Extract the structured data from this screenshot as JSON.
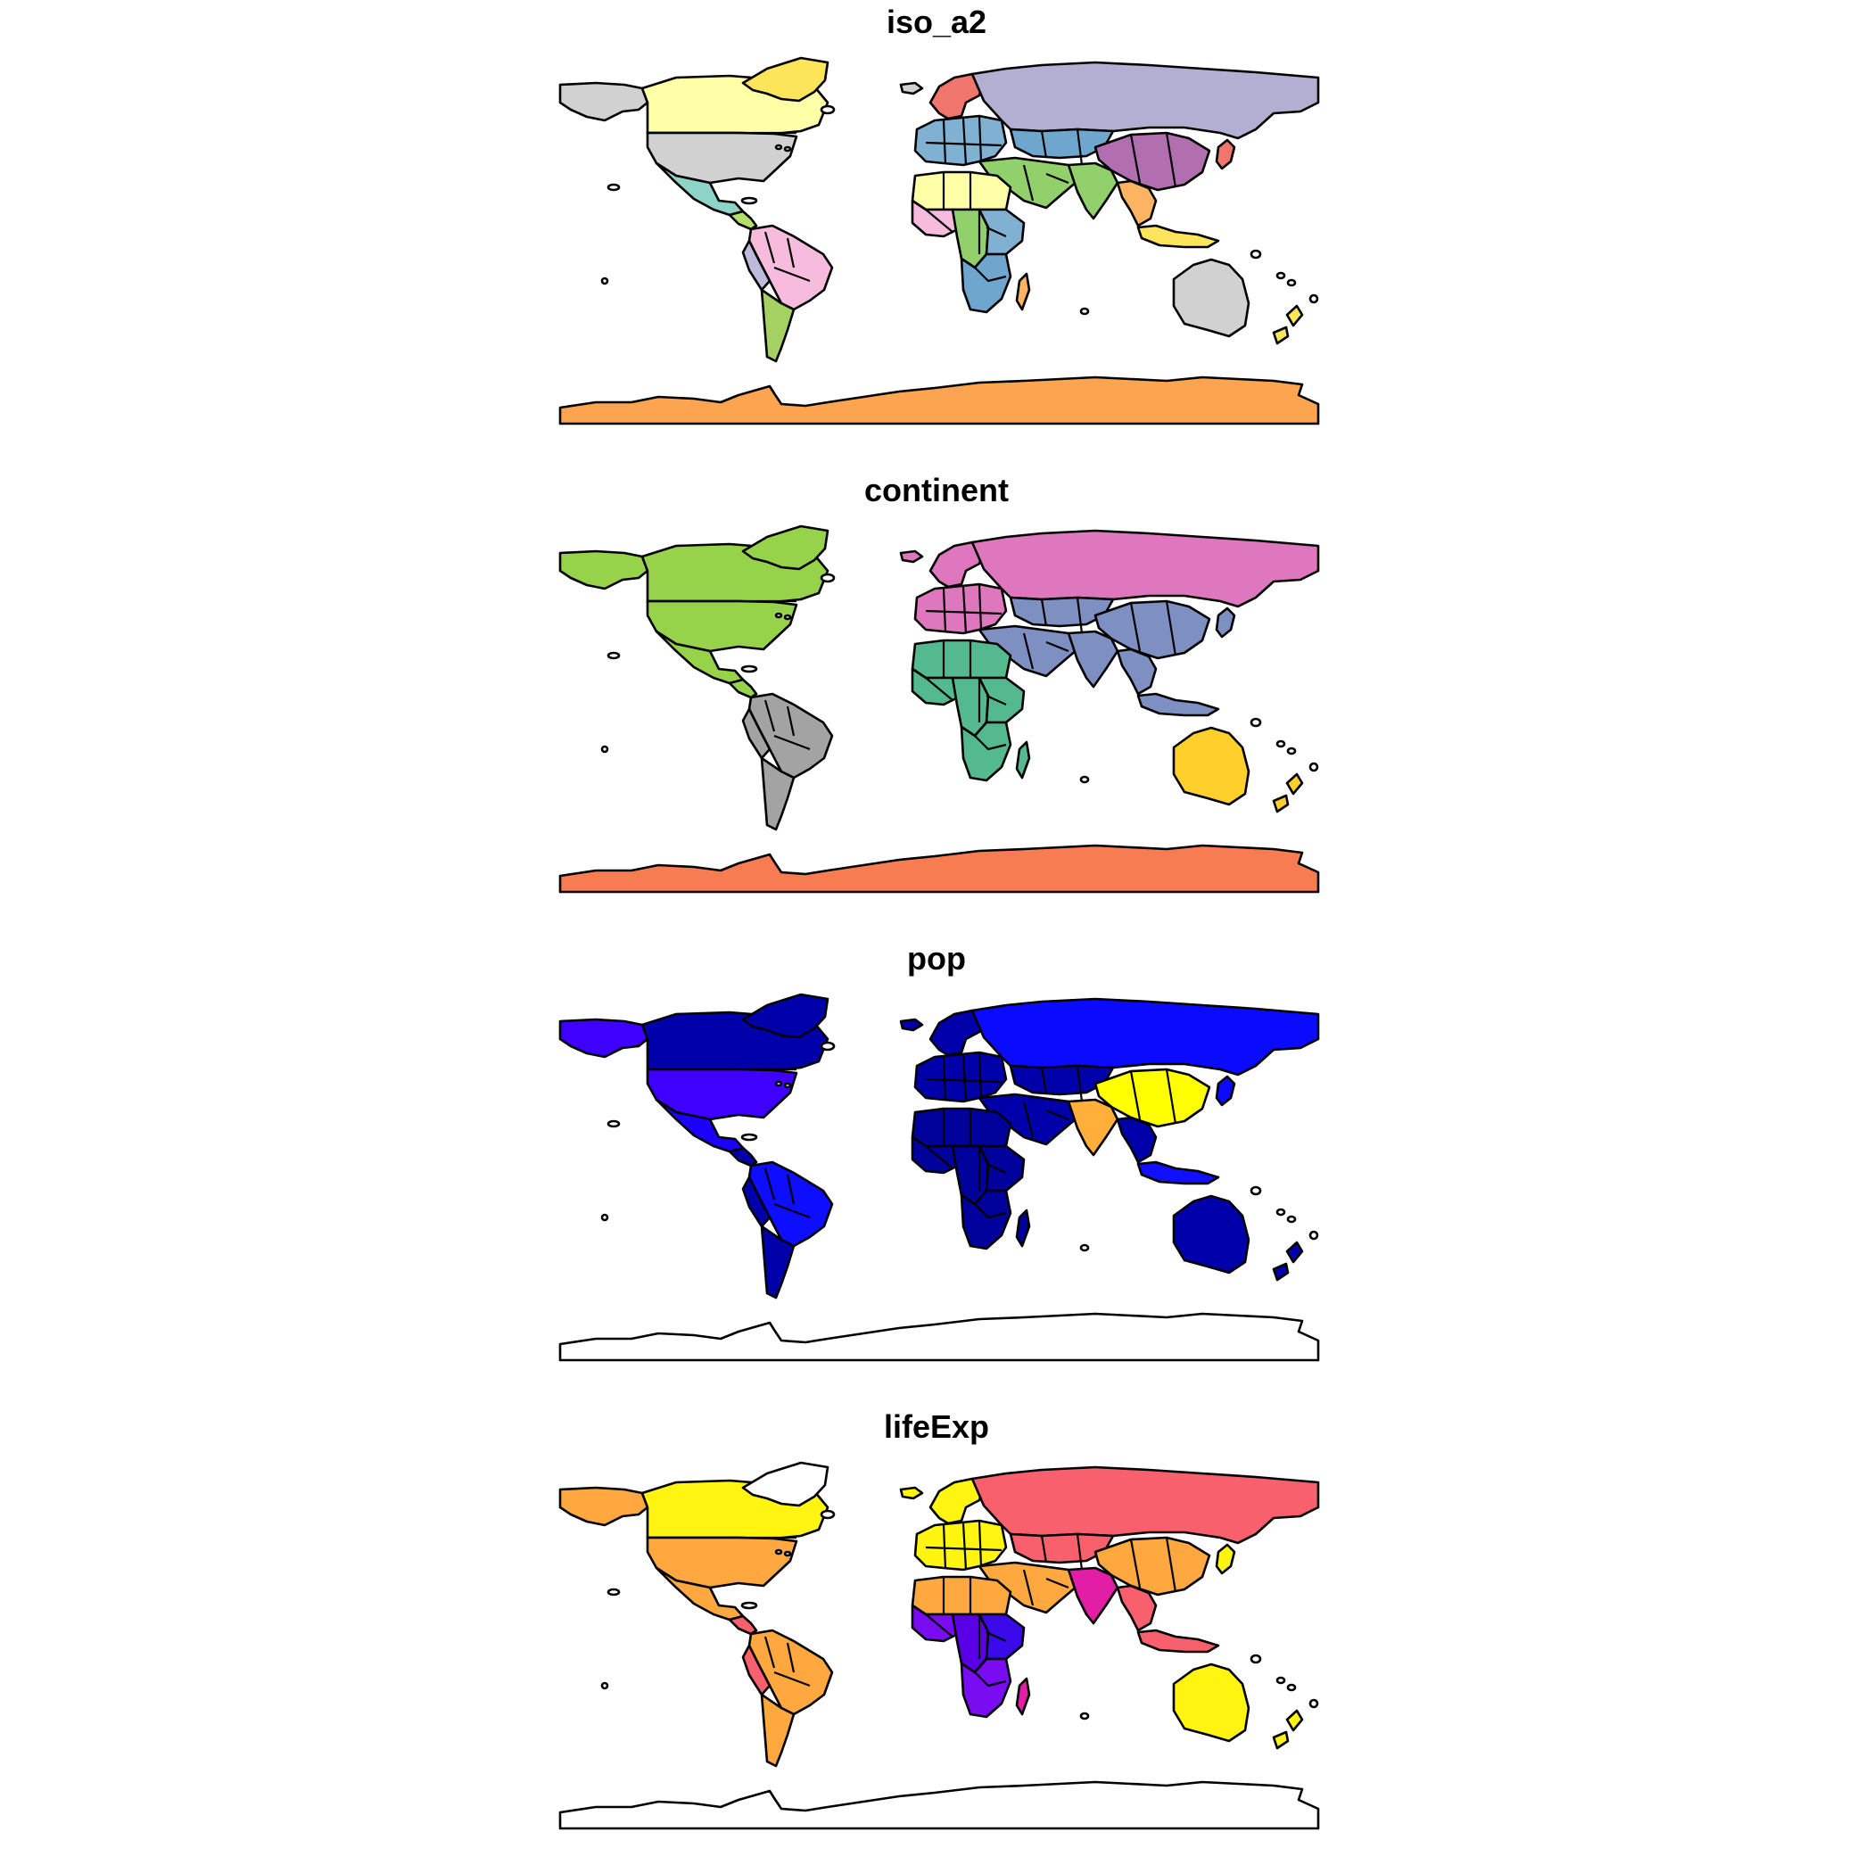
{
  "panels": [
    {
      "title": "iso_a2",
      "colors": {
        "canada": "#FFFFA8",
        "alaska": "#D1D1D1",
        "greenland": "#FDE55B",
        "usa": "#D1D1D1",
        "mexico": "#8DD3C7",
        "central_america": "#B3DE69",
        "south_america": "#F7BBDE",
        "south_america_west": "#BEBADA",
        "argentina": "#A4D162",
        "europe": "#80B1D3",
        "scandinavia": "#F0756C",
        "iceland": "#D1D1D1",
        "russia": "#B3AFD3",
        "kazakhstan": "#6FA6CE",
        "china": "#B16FB0",
        "middle_east": "#92D06C",
        "india": "#92D06C",
        "southeast_asia": "#FDB462",
        "indonesia": "#FDE55B",
        "japan": "#F0756C",
        "north_africa": "#FFFFA8",
        "west_africa": "#F7BBDE",
        "central_africa": "#92D06C",
        "east_africa": "#80B1D3",
        "southern_africa": "#6FA6CE",
        "madagascar": "#FDB462",
        "australia": "#D1D1D1",
        "new_zealand": "#FDE55B",
        "antarctica": "#FCA44F",
        "island": "#FFFFFF"
      }
    },
    {
      "title": "continent",
      "colors": {
        "canada": "#97D34A",
        "alaska": "#97D34A",
        "greenland": "#97D34A",
        "usa": "#97D34A",
        "mexico": "#97D34A",
        "central_america": "#97D34A",
        "south_america": "#A3A3A3",
        "south_america_west": "#A3A3A3",
        "argentina": "#A3A3A3",
        "europe": "#DE77BD",
        "scandinavia": "#DE77BD",
        "iceland": "#DE77BD",
        "russia": "#DE77BD",
        "kazakhstan": "#7E8FC2",
        "china": "#7E8FC2",
        "middle_east": "#7E8FC2",
        "india": "#7E8FC2",
        "southeast_asia": "#7E8FC2",
        "indonesia": "#7E8FC2",
        "japan": "#7E8FC2",
        "north_africa": "#54B98F",
        "west_africa": "#54B98F",
        "central_africa": "#54B98F",
        "east_africa": "#54B98F",
        "southern_africa": "#54B98F",
        "madagascar": "#54B98F",
        "australia": "#FFCF2C",
        "new_zealand": "#FFCF2C",
        "antarctica": "#F87C52",
        "island": "#FFFFFF"
      }
    },
    {
      "title": "pop",
      "colors": {
        "canada": "#0000AA",
        "alaska": "#3E00FF",
        "greenland": "#0000AA",
        "usa": "#3E00FF",
        "mexico": "#1B00FF",
        "central_america": "#0000AA",
        "south_america": "#0D0DFF",
        "south_america_west": "#0000AA",
        "argentina": "#0000AA",
        "europe": "#0000AA",
        "scandinavia": "#0000AA",
        "iceland": "#0000AA",
        "russia": "#0A0AFF",
        "kazakhstan": "#0000AA",
        "china": "#FFFF00",
        "middle_east": "#0000AA",
        "india": "#FFAF3A",
        "southeast_asia": "#0000AA",
        "indonesia": "#1010FF",
        "japan": "#0A0AFF",
        "north_africa": "#00009A",
        "west_africa": "#00009A",
        "central_africa": "#00009A",
        "east_africa": "#00009A",
        "southern_africa": "#00009A",
        "madagascar": "#00009A",
        "australia": "#0000AA",
        "new_zealand": "#0000AA",
        "antarctica": "#FFFFFF",
        "island": "#FFFFFF"
      }
    },
    {
      "title": "lifeExp",
      "colors": {
        "canada": "#FFF510",
        "alaska": "#FFA83F",
        "greenland": "#FFFFFF",
        "usa": "#FFA83F",
        "mexico": "#FFA83F",
        "central_america": "#F7606C",
        "south_america": "#FFA83F",
        "south_america_west": "#F7606C",
        "argentina": "#FFA83F",
        "europe": "#FFF510",
        "scandinavia": "#FFF510",
        "iceland": "#FFF510",
        "russia": "#F7606C",
        "kazakhstan": "#F7606C",
        "china": "#FFA83F",
        "middle_east": "#FFA83F",
        "india": "#E21DA6",
        "southeast_asia": "#F7606C",
        "indonesia": "#F7606C",
        "japan": "#FFF510",
        "north_africa": "#FFA83F",
        "west_africa": "#7A0CF2",
        "central_africa": "#5A00E6",
        "east_africa": "#3A0AE9",
        "southern_africa": "#7A0CF2",
        "madagascar": "#E21DA6",
        "australia": "#FFF510",
        "new_zealand": "#FFF510",
        "antarctica": "#FFFFFF",
        "island": "#FFFFFF"
      }
    }
  ]
}
